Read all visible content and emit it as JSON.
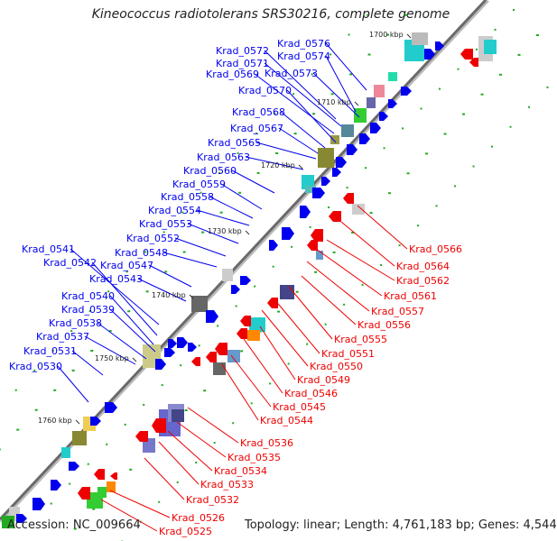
{
  "title": "Kineococcus radiotolerans SRS30216, complete genome",
  "accession": "Accession: NC_009664",
  "topology": "Topology: linear; Length: 4,761,183 bp; Genes: 4,544",
  "colors": {
    "forward": "#0000ee",
    "reverse": "#ee0000",
    "backbone": "#777777",
    "tick": "#22aa22"
  },
  "ticks": [
    "1700 kbp",
    "1710 kbp",
    "1720 kbp",
    "1730 kbp",
    "1740 kbp",
    "1750 kbp",
    "1760 kbp"
  ],
  "forward_labels": [
    "Krad_0576",
    "Krad_0572",
    "Krad_0574",
    "Krad_0571",
    "Krad_0573",
    "Krad_0569",
    "Krad_0570",
    "Krad_0568",
    "Krad_0567",
    "Krad_0565",
    "Krad_0563",
    "Krad_0560",
    "Krad_0559",
    "Krad_0558",
    "Krad_0554",
    "Krad_0553",
    "Krad_0552",
    "Krad_0548",
    "Krad_0541",
    "Krad_0547",
    "Krad_0542",
    "Krad_0543",
    "Krad_0540",
    "Krad_0539",
    "Krad_0538",
    "Krad_0537",
    "Krad_0531",
    "Krad_0530"
  ],
  "reverse_labels": [
    "Krad_0566",
    "Krad_0564",
    "Krad_0562",
    "Krad_0561",
    "Krad_0557",
    "Krad_0556",
    "Krad_0555",
    "Krad_0551",
    "Krad_0550",
    "Krad_0549",
    "Krad_0546",
    "Krad_0545",
    "Krad_0544",
    "Krad_0536",
    "Krad_0535",
    "Krad_0534",
    "Krad_0533",
    "Krad_0532",
    "Krad_0526",
    "Krad_0525"
  ]
}
